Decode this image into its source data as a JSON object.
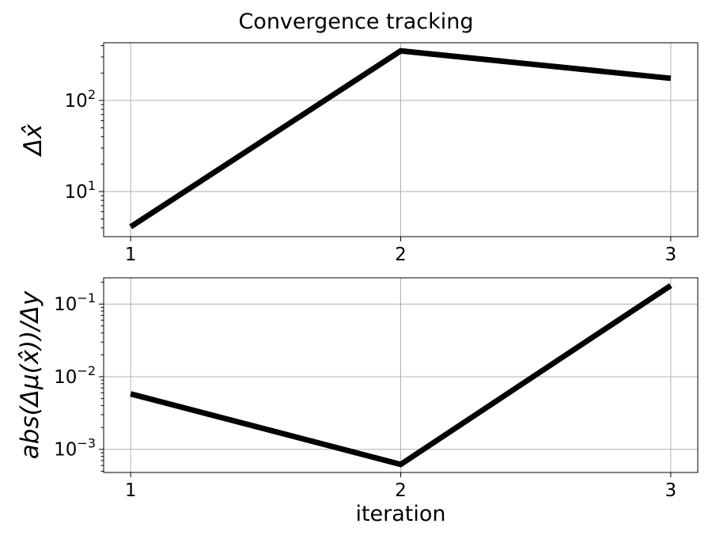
{
  "title": "Convergence tracking",
  "chart_data": [
    {
      "type": "line",
      "title": "Convergence tracking",
      "xlabel": "",
      "ylabel": "Δx̂",
      "yscale": "log",
      "x": [
        1,
        2,
        3
      ],
      "xticks": [
        "1",
        "2",
        "3"
      ],
      "xlim": [
        0.9,
        3.1
      ],
      "ylim": [
        3.2,
        430
      ],
      "yticks": [
        {
          "base": "10",
          "exp": "1",
          "value": 10
        },
        {
          "base": "10",
          "exp": "2",
          "value": 100
        }
      ],
      "grid": true,
      "series": [
        {
          "values": [
            4.1,
            350,
            175
          ],
          "color": "#000000"
        }
      ]
    },
    {
      "type": "line",
      "xlabel": "iteration",
      "ylabel": "abs(Δμ(x̂))/Δy",
      "yscale": "log",
      "x": [
        1,
        2,
        3
      ],
      "xticks": [
        "1",
        "2",
        "3"
      ],
      "xlim": [
        0.9,
        3.1
      ],
      "ylim": [
        0.00048,
        0.23
      ],
      "yticks": [
        {
          "base": "10",
          "exp": "−3",
          "value": 0.001
        },
        {
          "base": "10",
          "exp": "−2",
          "value": 0.01
        },
        {
          "base": "10",
          "exp": "−1",
          "value": 0.1
        }
      ],
      "grid": true,
      "series": [
        {
          "values": [
            0.0058,
            0.00062,
            0.18
          ],
          "color": "#000000"
        }
      ]
    }
  ]
}
